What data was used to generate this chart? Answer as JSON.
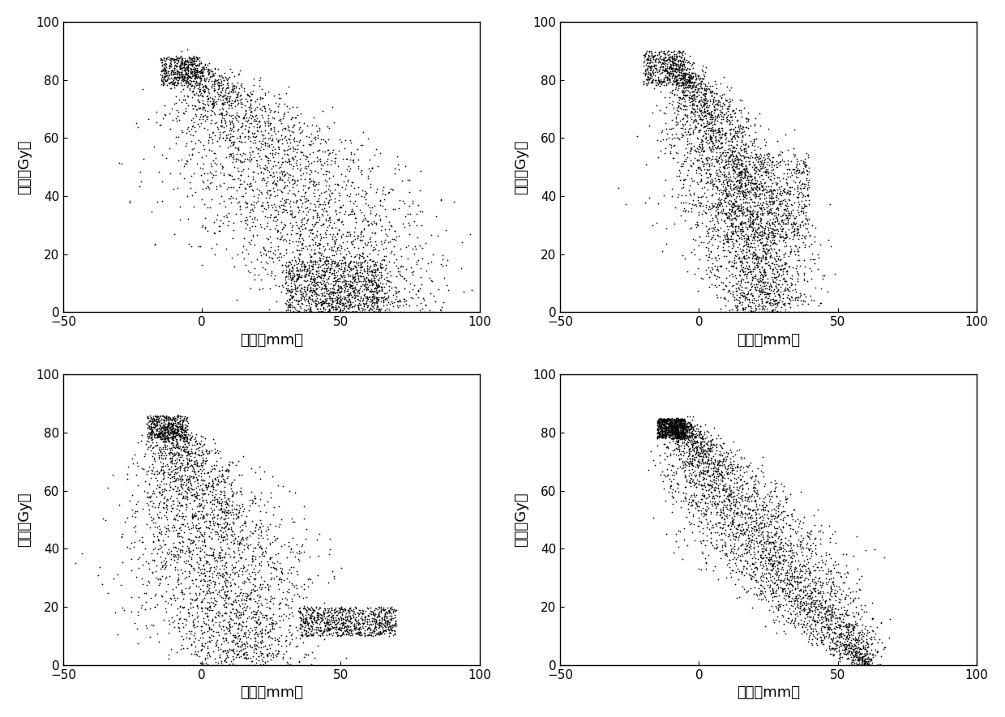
{
  "xlabel": "距离（mm）",
  "ylabel": "剂量（Gy）",
  "xlim": [
    -50,
    100
  ],
  "ylim": [
    0,
    100
  ],
  "xticks": [
    -50,
    0,
    50,
    100
  ],
  "yticks": [
    0,
    20,
    40,
    60,
    80,
    100
  ],
  "background": "#ffffff",
  "point_color": "#000000",
  "point_size": 1.5,
  "num_points": 3000,
  "seed1": 42,
  "seed2": 123,
  "seed3": 456,
  "seed4": 789
}
